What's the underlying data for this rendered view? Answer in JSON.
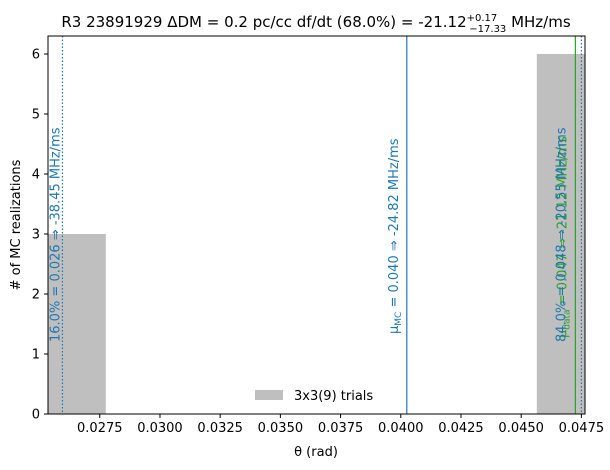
{
  "chart_data": {
    "type": "bar",
    "title": {
      "prefix": "R3 23891929 ΔDM = 0.2 pc/cc df/dt (68.0%) = -21.12",
      "sup": "+0.17",
      "sub": "−17.33",
      "suffix": " MHz/ms"
    },
    "xlabel": "θ (rad)",
    "ylabel": "# of MC realizations",
    "xlim": [
      0.02535,
      0.04765
    ],
    "ylim": [
      0,
      6.3
    ],
    "xticks": [
      "0.0275",
      "0.0300",
      "0.0325",
      "0.0350",
      "0.0375",
      "0.0400",
      "0.0425",
      "0.0450",
      "0.0475"
    ],
    "yticks": [
      "0",
      "1",
      "2",
      "3",
      "4",
      "5",
      "6"
    ],
    "bars": [
      {
        "x0": 0.02535,
        "x1": 0.02775,
        "value": 3
      },
      {
        "x0": 0.04565,
        "x1": 0.04765,
        "value": 6
      }
    ],
    "bar_color": "#bfbfbf",
    "vlines": [
      {
        "x": 0.02595,
        "style": "dotted",
        "color": "#1f77b4",
        "label": "16.0% = 0.026 ⇒ -38.45 MHz/ms"
      },
      {
        "x": 0.04025,
        "style": "solid",
        "color": "#1f77b4",
        "label_main": "μ",
        "label_sub": "MC",
        "label_rest": " = 0.040 ⇒ -24.82 MHz/ms"
      },
      {
        "x": 0.04725,
        "style": "solid",
        "color": "#2ca02c",
        "label_main": "μ",
        "label_sub": "data",
        "label_rest": " = 0.047 ⇒ -21.12 MHz/ms"
      },
      {
        "x": 0.0475,
        "style": "dotted",
        "color": "#1f77b4",
        "label": "84.0% = 0.048 ⇒ -20.55 MHz/ms"
      }
    ],
    "legend": {
      "label": "3x3(9) trials",
      "position": "lower-center"
    },
    "grid": false
  }
}
